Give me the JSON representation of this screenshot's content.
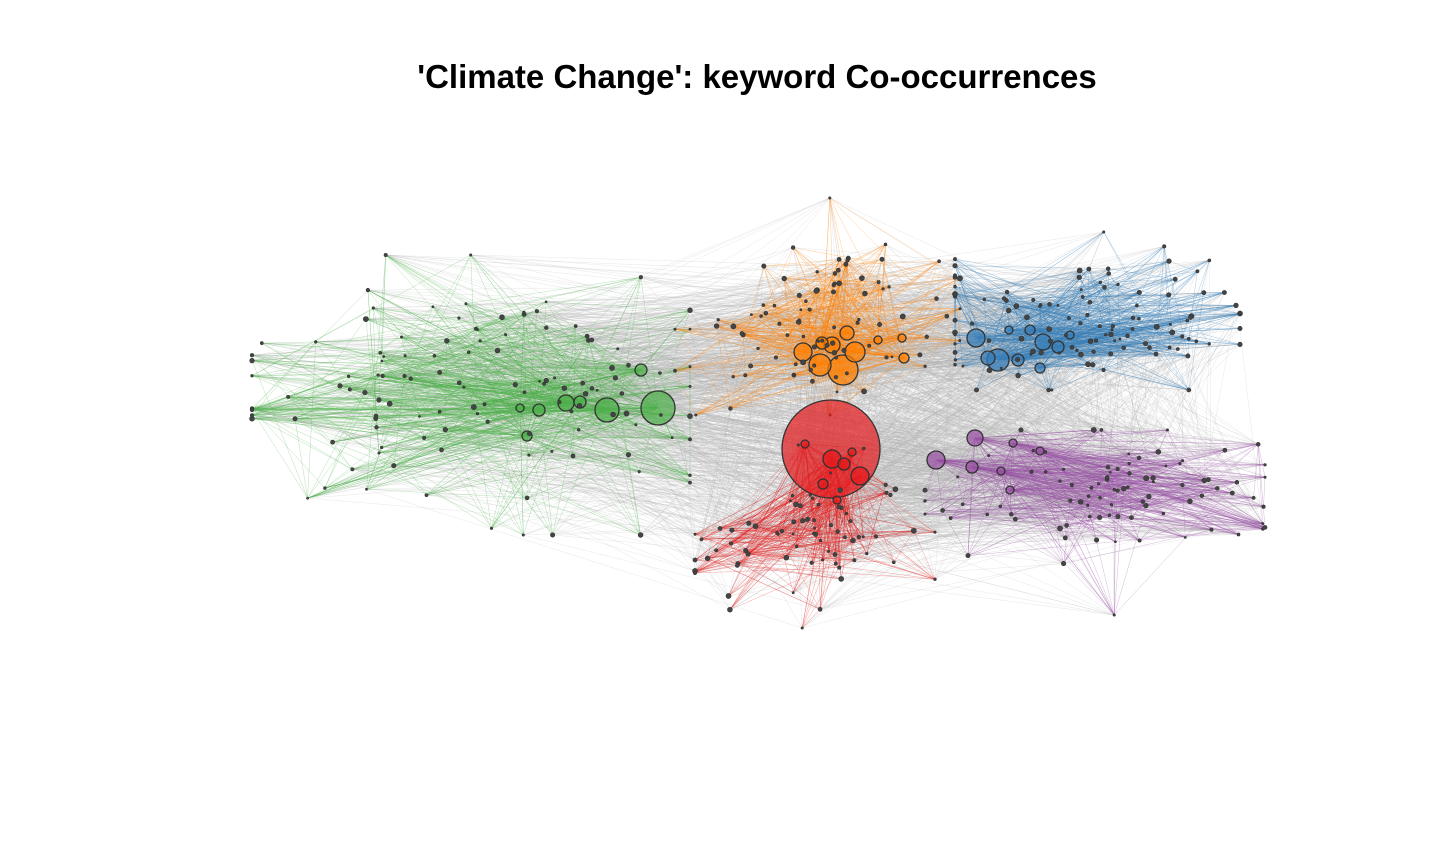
{
  "title": "'Climate Change': keyword Co-occurrences",
  "inter_cluster_edge_color": "#b3b3b3",
  "node_border_color": "#333333",
  "clusters": [
    {
      "id": "green",
      "color": "#4daf4a"
    },
    {
      "id": "orange",
      "color": "#ff7f00"
    },
    {
      "id": "blue",
      "color": "#377eb8"
    },
    {
      "id": "red",
      "color": "#e41a1c"
    },
    {
      "id": "purple",
      "color": "#984ea3"
    }
  ]
}
